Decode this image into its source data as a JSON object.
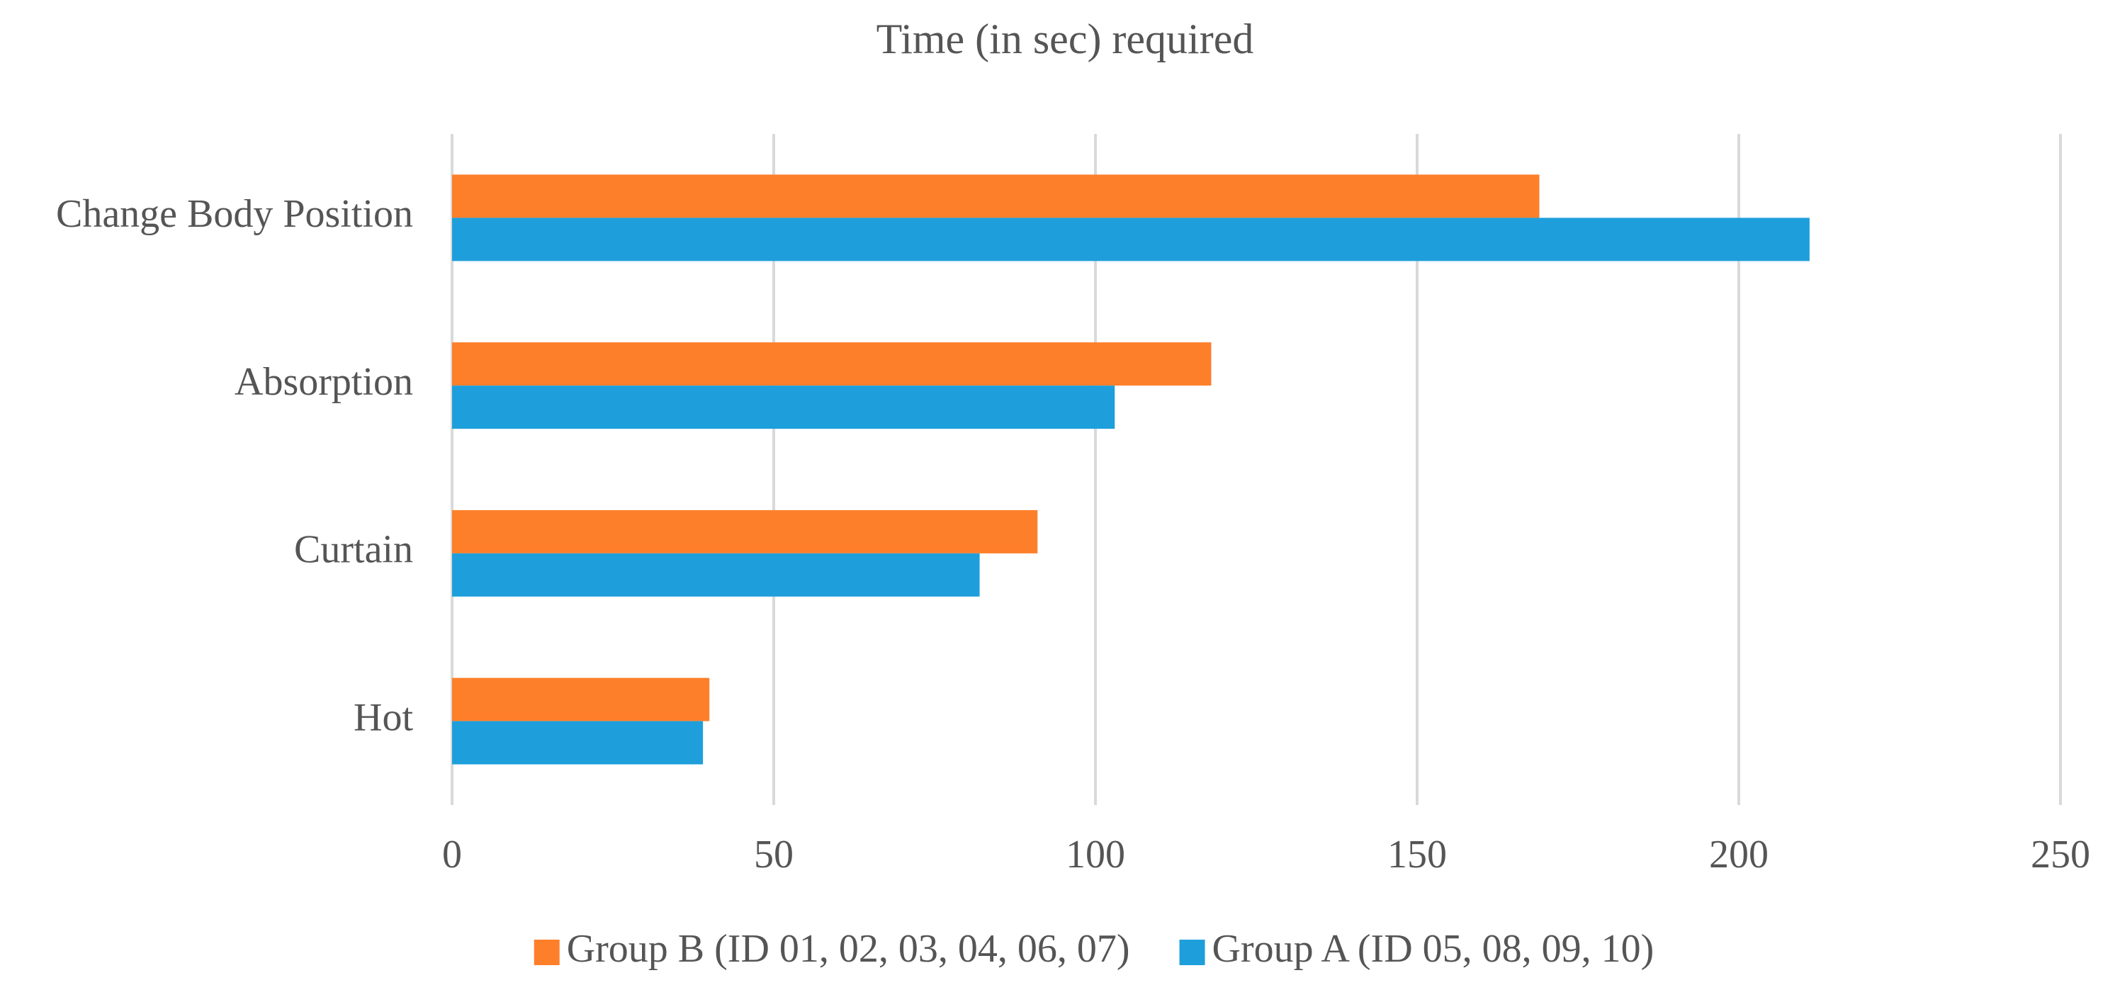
{
  "chart_data": {
    "type": "bar",
    "orientation": "horizontal",
    "title": "Time (in sec) required",
    "categories": [
      "Change Body Position",
      "Absorption",
      "Curtain",
      "Hot"
    ],
    "series": [
      {
        "name": "Group B (ID 01, 02, 03, 04, 06, 07)",
        "color": "#fe7f2a",
        "values": [
          169,
          118,
          91,
          40
        ]
      },
      {
        "name": "Group A (ID 05, 08, 09, 10)",
        "color": "#1e9fdb",
        "values": [
          211,
          103,
          82,
          39
        ]
      }
    ],
    "xlim": [
      0,
      250
    ],
    "xticks": [
      0,
      50,
      100,
      150,
      200,
      250
    ],
    "grid": true,
    "legend": "bottom"
  }
}
